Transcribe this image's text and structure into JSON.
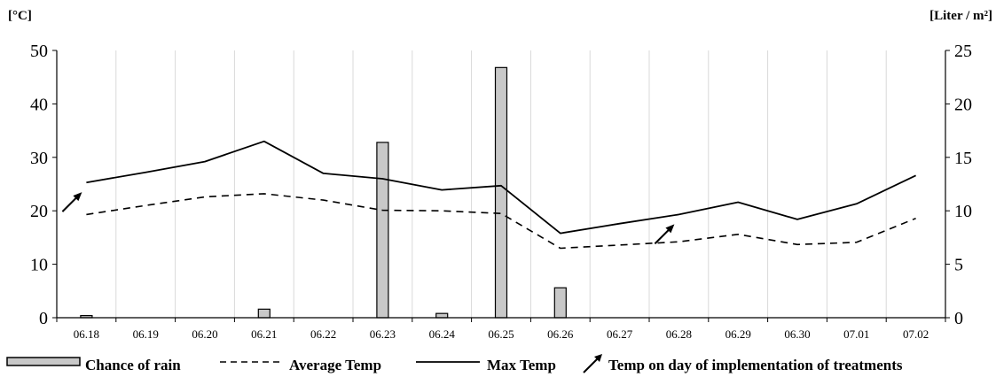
{
  "chart_data": {
    "type": "bar+line",
    "categories": [
      "06.18",
      "06.19",
      "06.20",
      "06.21",
      "06.22",
      "06.23",
      "06.24",
      "06.25",
      "06.26",
      "06.27",
      "06.28",
      "06.29",
      "06.30",
      "07.01",
      "07.02"
    ],
    "left_axis": {
      "unit_label": "[°C]",
      "ylim": [
        0,
        50
      ],
      "ticks": [
        "0",
        "10",
        "20",
        "30",
        "40",
        "50"
      ]
    },
    "right_axis": {
      "unit_label": "[Liter / m²]",
      "ylim": [
        0,
        25
      ],
      "ticks": [
        "0",
        "5",
        "10",
        "15",
        "20",
        "25"
      ]
    },
    "grid": "vertical",
    "bars": {
      "name": "Chance of rain",
      "axis": "right",
      "color": "#c8c8c8",
      "values": [
        0.2,
        0,
        0,
        0.8,
        0,
        16.4,
        0.4,
        23.4,
        2.8,
        0,
        0,
        0,
        0,
        0,
        0
      ]
    },
    "series": [
      {
        "name": "Average Temp",
        "axis": "left",
        "style": "dashed",
        "values": [
          19.3,
          21.0,
          22.6,
          23.2,
          22.0,
          20.1,
          20.0,
          19.5,
          13.0,
          13.6,
          14.2,
          15.6,
          13.7,
          14.1,
          18.6
        ]
      },
      {
        "name": "Max Temp",
        "axis": "left",
        "style": "solid",
        "values": [
          25.3,
          27.2,
          29.2,
          33.0,
          27.0,
          26.0,
          23.9,
          24.7,
          15.8,
          17.6,
          19.3,
          21.6,
          18.4,
          21.3,
          26.6
        ]
      }
    ],
    "treatment_markers": [
      {
        "name": "Temp on day of implementation of treatments",
        "category": "06.18",
        "value": 21.5
      },
      {
        "name": "Temp on day of implementation of treatments",
        "category": "06.28",
        "value": 15.5
      }
    ],
    "legend": {
      "position": "bottom",
      "items": [
        "Chance of rain",
        "Average Temp",
        "Max Temp",
        "Temp on day of implementation of treatments"
      ]
    }
  }
}
